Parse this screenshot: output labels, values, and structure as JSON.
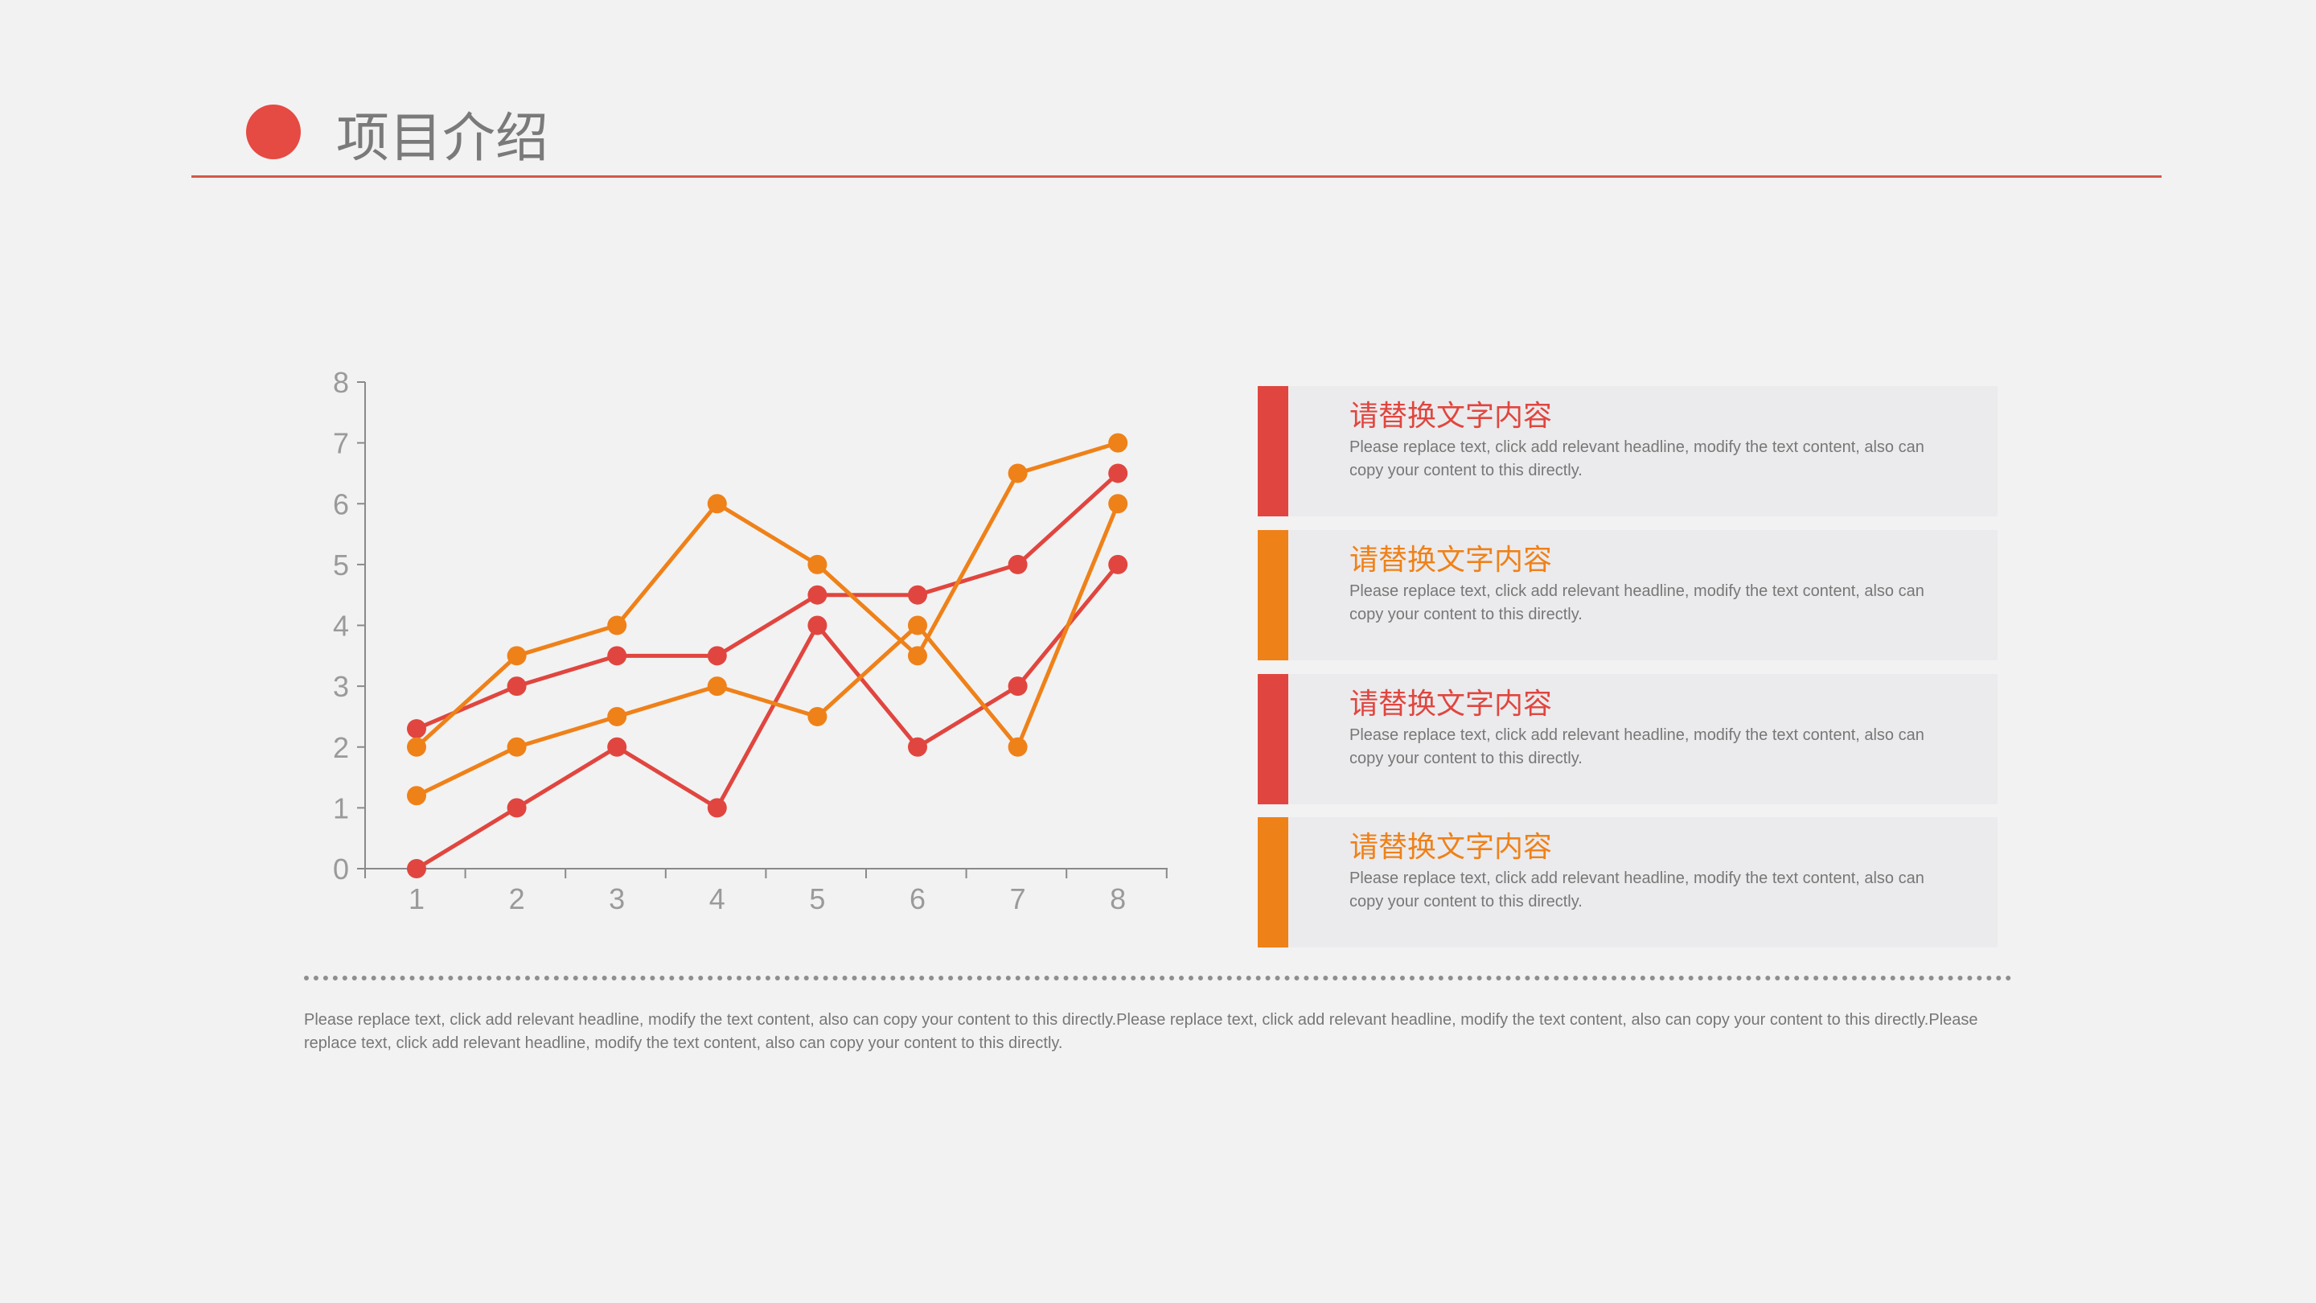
{
  "header": {
    "title": "项目介绍"
  },
  "colors": {
    "red": "#e0463f",
    "orange": "#ef8119",
    "axis": "#8a8a8a",
    "tick_text": "#9a9a9a"
  },
  "chart_data": {
    "type": "line",
    "x": [
      1,
      2,
      3,
      4,
      5,
      6,
      7,
      8
    ],
    "ylim": [
      0,
      8
    ],
    "yticks": [
      0,
      1,
      2,
      3,
      4,
      5,
      6,
      7,
      8
    ],
    "grid": false,
    "legend": "none",
    "series": [
      {
        "color": "#e0463f",
        "values": [
          2.3,
          3,
          3.5,
          3.5,
          4.5,
          4.5,
          5,
          6.5
        ]
      },
      {
        "color": "#e0463f",
        "values": [
          0,
          1,
          2,
          1,
          4,
          2,
          3,
          5
        ]
      },
      {
        "color": "#ef8119",
        "values": [
          2,
          3.5,
          4,
          6,
          5,
          3.5,
          6.5,
          7
        ]
      },
      {
        "color": "#ef8119",
        "values": [
          1.2,
          2,
          2.5,
          3,
          2.5,
          4,
          2,
          6
        ]
      }
    ]
  },
  "cards": [
    {
      "title": "请替换文字内容",
      "color": "#e0463f",
      "desc": "Please replace text, click add relevant headline, modify the text content, also can copy your content to this directly."
    },
    {
      "title": "请替换文字内容",
      "color": "#ef8119",
      "desc": "Please replace text, click add relevant headline, modify the text content, also can copy your content to this directly."
    },
    {
      "title": "请替换文字内容",
      "color": "#e0463f",
      "desc": "Please replace text, click add relevant headline, modify the text content, also can copy your content to this directly."
    },
    {
      "title": "请替换文字内容",
      "color": "#ef8119",
      "desc": "Please replace text, click add relevant headline, modify the text content, also can copy your content to this directly."
    }
  ],
  "footer": {
    "text": "Please replace text, click add relevant headline, modify the text content, also can copy your content to this directly.Please replace text, click add relevant headline, modify the text content, also can copy your content to this directly.Please replace text, click add relevant headline, modify the text content, also can copy your content to this directly."
  }
}
